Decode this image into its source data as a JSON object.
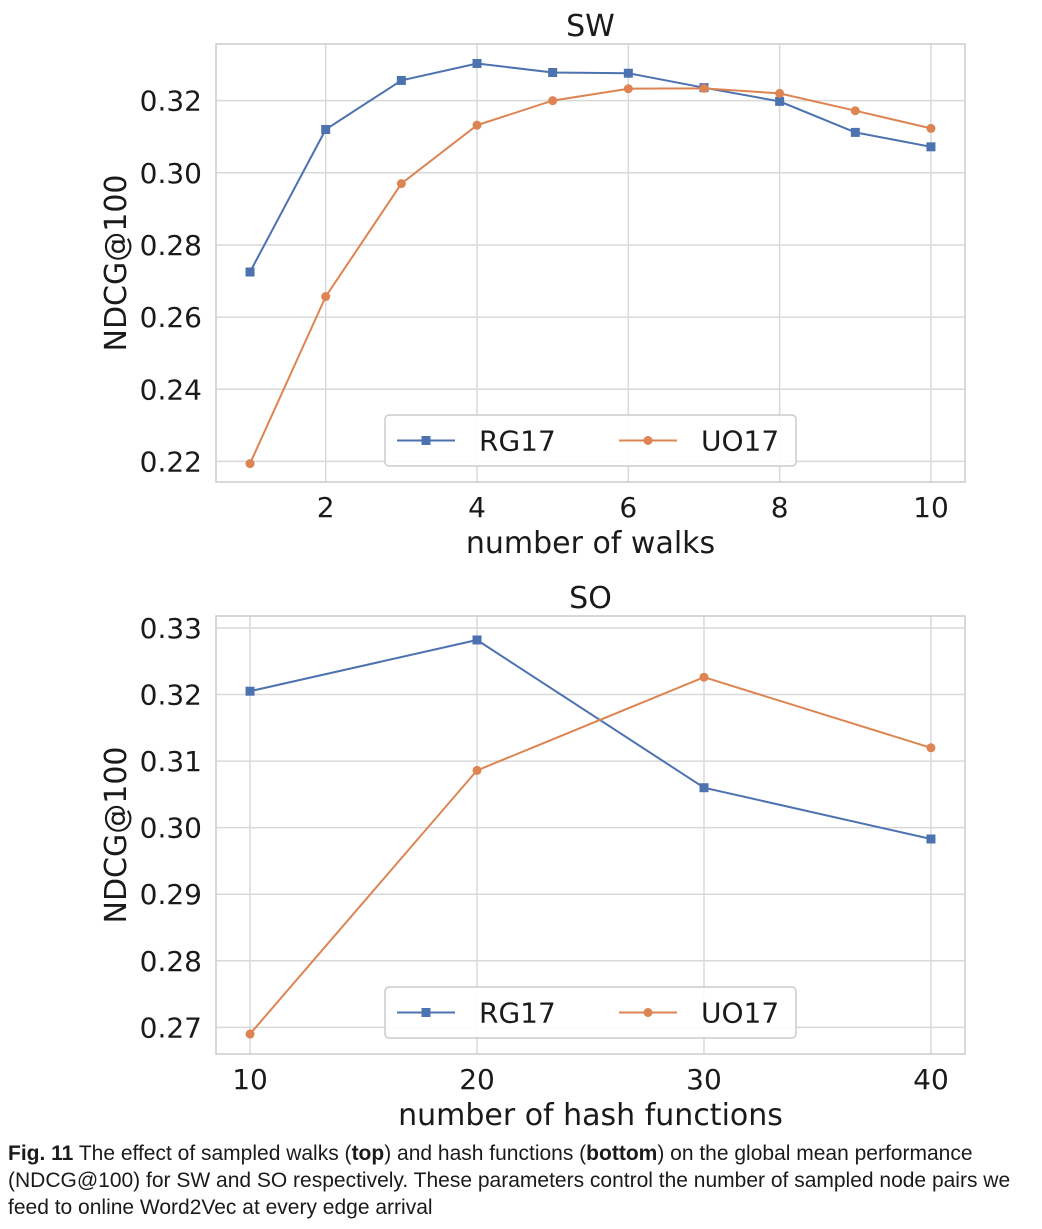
{
  "chart_data": [
    {
      "type": "line",
      "title": "SW",
      "xlabel": "number of walks",
      "ylabel": "NDCG@100",
      "x": [
        1,
        2,
        3,
        4,
        5,
        6,
        7,
        8,
        9,
        10
      ],
      "xticks": [
        2,
        4,
        6,
        8,
        10
      ],
      "xtick_labels": [
        "2",
        "4",
        "6",
        "8",
        "10"
      ],
      "xlim": [
        0.55,
        10.45
      ],
      "yticks": [
        0.22,
        0.24,
        0.26,
        0.28,
        0.3,
        0.32
      ],
      "ytick_labels": [
        "0.22",
        "0.24",
        "0.26",
        "0.28",
        "0.30",
        "0.32"
      ],
      "ylim": [
        0.2143,
        0.3357
      ],
      "grid": true,
      "legend_position": "lower-center",
      "series": [
        {
          "name": "RG17",
          "marker": "square",
          "color": "#4c72b0",
          "values": [
            0.2725,
            0.312,
            0.3256,
            0.3303,
            0.3278,
            0.3276,
            0.3236,
            0.3198,
            0.3112,
            0.3072
          ]
        },
        {
          "name": "UO17",
          "marker": "circle",
          "color": "#dd8452",
          "values": [
            0.2194,
            0.2657,
            0.297,
            0.3132,
            0.32,
            0.3233,
            0.3234,
            0.322,
            0.3172,
            0.3123
          ]
        }
      ]
    },
    {
      "type": "line",
      "title": "SO",
      "xlabel": "number of hash functions",
      "ylabel": "NDCG@100",
      "x": [
        10,
        20,
        30,
        40
      ],
      "xticks": [
        10,
        20,
        30,
        40
      ],
      "xtick_labels": [
        "10",
        "20",
        "30",
        "40"
      ],
      "xlim": [
        8.5,
        41.5
      ],
      "yticks": [
        0.27,
        0.28,
        0.29,
        0.3,
        0.31,
        0.32,
        0.33
      ],
      "ytick_labels": [
        "0.27",
        "0.28",
        "0.29",
        "0.30",
        "0.31",
        "0.32",
        "0.33"
      ],
      "ylim": [
        0.266,
        0.3318
      ],
      "grid": true,
      "legend_position": "lower-center",
      "series": [
        {
          "name": "RG17",
          "marker": "square",
          "color": "#4c72b0",
          "values": [
            0.3205,
            0.3282,
            0.306,
            0.2983
          ]
        },
        {
          "name": "UO17",
          "marker": "circle",
          "color": "#dd8452",
          "values": [
            0.269,
            0.3086,
            0.3226,
            0.312
          ]
        }
      ]
    }
  ],
  "caption": {
    "label": "Fig. 11",
    "text_1": "  The effect of sampled walks (",
    "bold_1": "top",
    "text_2": ") and hash functions (",
    "bold_2": "bottom",
    "text_3": ") on the global mean performance (NDCG@100) for SW and SO respectively. These parameters control the number of sampled node pairs we feed to online Word2Vec at every edge arrival"
  }
}
